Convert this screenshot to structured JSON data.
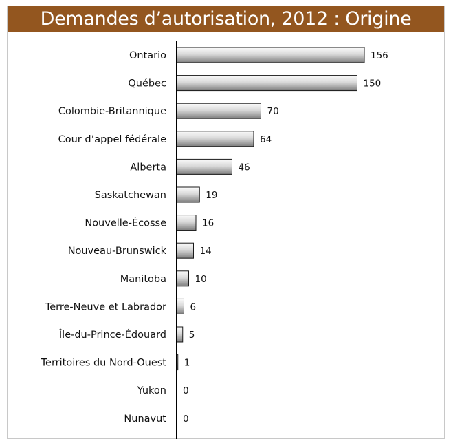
{
  "title": "Demandes d’autorisation, 2012 : Origine",
  "colors": {
    "header_bg": "#93561f",
    "header_text": "#ffffff",
    "bar_light": "#f2f2f2",
    "bar_dark": "#8c8c8c",
    "bar_stroke": "#1a1a1a"
  },
  "chart_data": {
    "type": "bar",
    "orientation": "horizontal",
    "title": "Demandes d’autorisation, 2012 : Origine",
    "categories": [
      "Ontario",
      "Québec",
      "Colombie-Britannique",
      "Cour d’appel fédérale",
      "Alberta",
      "Saskatchewan",
      "Nouvelle-Écosse",
      "Nouveau-Brunswick",
      "Manitoba",
      "Terre-Neuve et Labrador",
      "Île-du-Prince-Édouard",
      "Territoires du Nord-Ouest",
      "Yukon",
      "Nunavut"
    ],
    "values": [
      156,
      150,
      70,
      64,
      46,
      19,
      16,
      14,
      10,
      6,
      5,
      1,
      0,
      0
    ],
    "data_labels": [
      "156",
      "150",
      "70",
      "64",
      "46",
      "19",
      "16",
      "14",
      "10",
      "6",
      "5",
      "1",
      "0",
      "0"
    ],
    "xlim": [
      0,
      160
    ],
    "grid": false,
    "legend": "none"
  }
}
